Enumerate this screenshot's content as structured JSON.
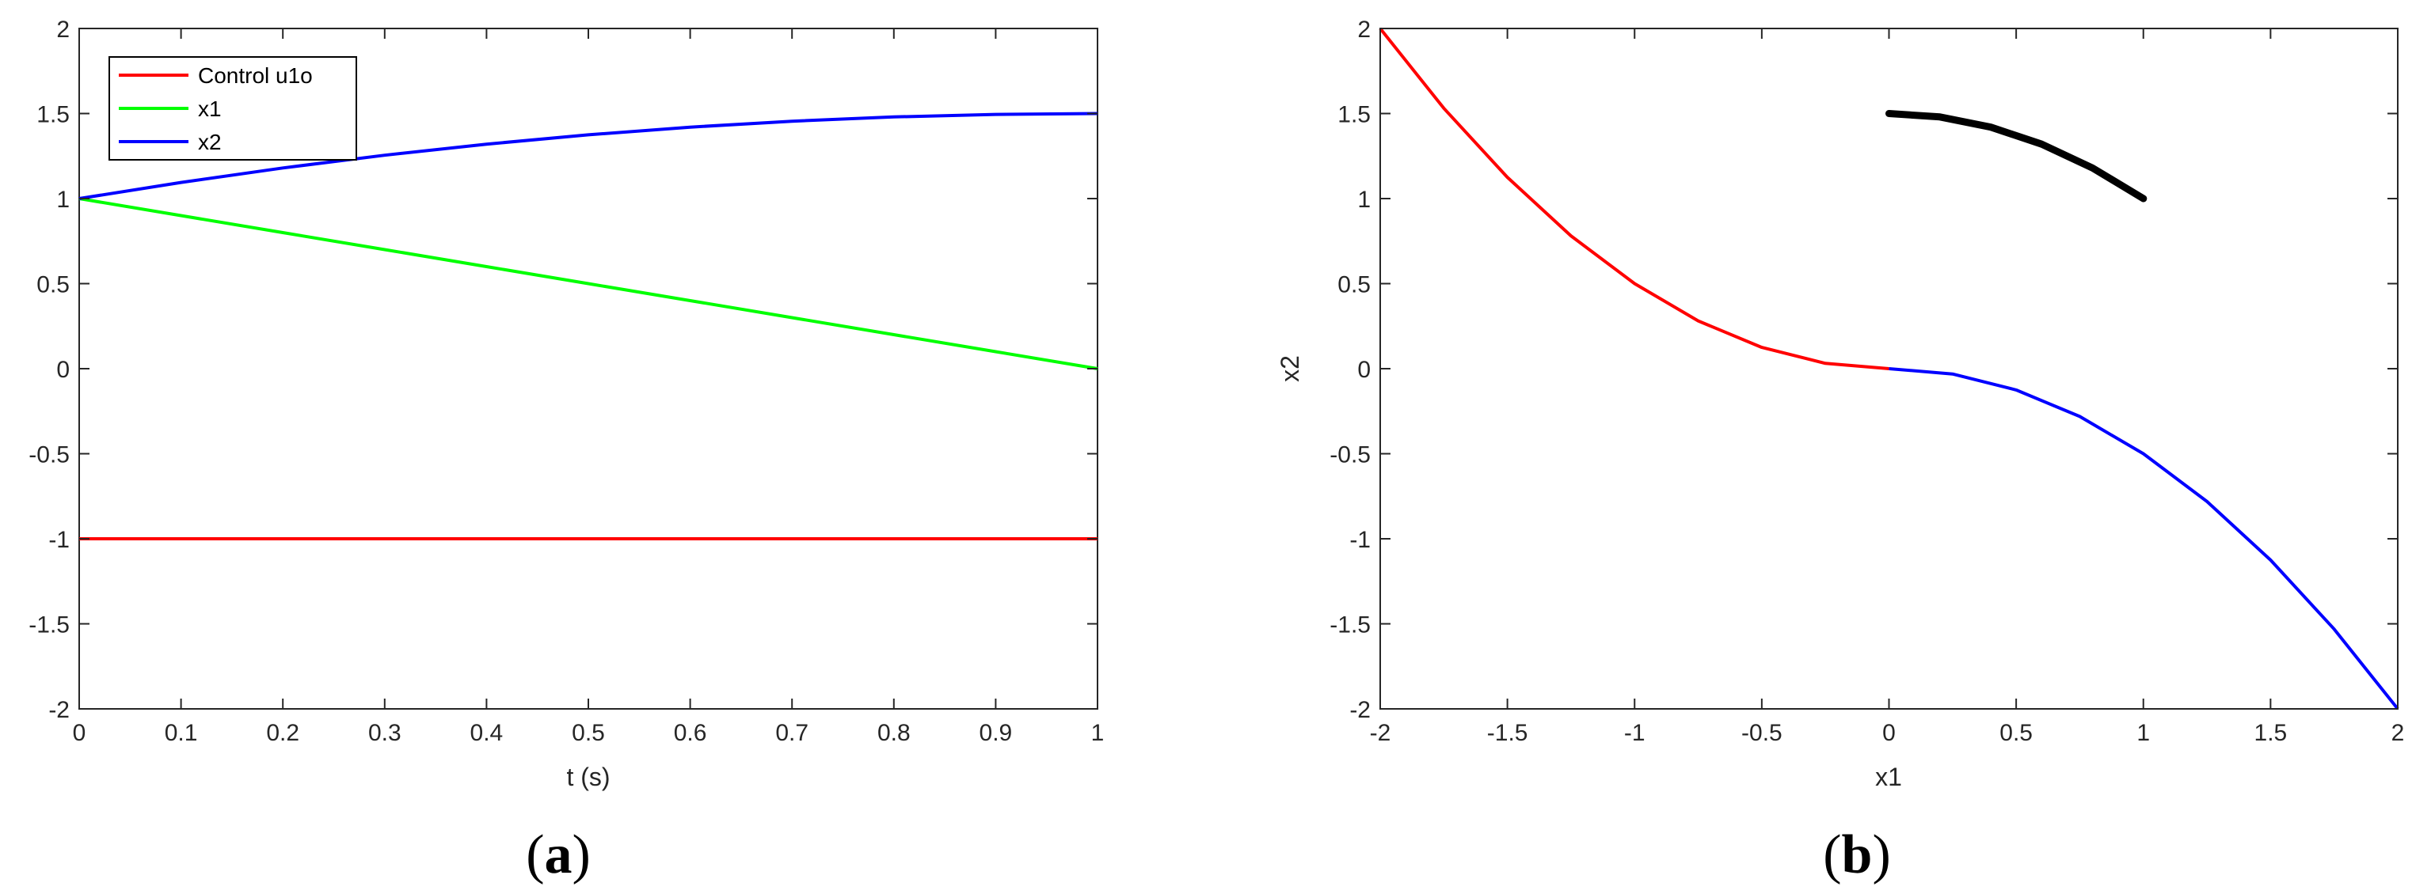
{
  "chart_data": [
    {
      "type": "line",
      "panel_label": "(a)",
      "panel_letter": "a",
      "xlabel": "t (s)",
      "ylabel": "",
      "xlim": [
        0,
        1
      ],
      "ylim": [
        -2,
        2
      ],
      "xticks": [
        0,
        0.1,
        0.2,
        0.3,
        0.4,
        0.5,
        0.6,
        0.7,
        0.8,
        0.9,
        1
      ],
      "xtick_labels": [
        "0",
        "0.1",
        "0.2",
        "0.3",
        "0.4",
        "0.5",
        "0.6",
        "0.7",
        "0.8",
        "0.9",
        "1"
      ],
      "yticks": [
        -2,
        -1.5,
        -1,
        -0.5,
        0,
        0.5,
        1,
        1.5,
        2
      ],
      "ytick_labels": [
        "-2",
        "-1.5",
        "-1",
        "-0.5",
        "0",
        "0.5",
        "1",
        "1.5",
        "2"
      ],
      "grid": false,
      "legend_position": "top-left",
      "series": [
        {
          "name": "Control u1o",
          "color": "#ff0000",
          "x": [
            0,
            0.1,
            0.2,
            0.3,
            0.4,
            0.5,
            0.6,
            0.7,
            0.8,
            0.9,
            1
          ],
          "y": [
            -1,
            -1,
            -1,
            -1,
            -1,
            -1,
            -1,
            -1,
            -1,
            -1,
            -1
          ]
        },
        {
          "name": "x1",
          "color": "#00ff00",
          "x": [
            0,
            0.1,
            0.2,
            0.3,
            0.4,
            0.5,
            0.6,
            0.7,
            0.8,
            0.9,
            1
          ],
          "y": [
            1,
            0.9,
            0.8,
            0.7,
            0.6,
            0.5,
            0.4,
            0.3,
            0.2,
            0.1,
            0
          ]
        },
        {
          "name": "x2",
          "color": "#0000ff",
          "x": [
            0,
            0.1,
            0.2,
            0.3,
            0.4,
            0.5,
            0.6,
            0.7,
            0.8,
            0.9,
            1
          ],
          "y": [
            1,
            1.095,
            1.18,
            1.255,
            1.32,
            1.375,
            1.42,
            1.455,
            1.48,
            1.495,
            1.5
          ]
        }
      ]
    },
    {
      "type": "line",
      "panel_label": "(b)",
      "panel_letter": "b",
      "xlabel": "x1",
      "ylabel": "x2",
      "xlim": [
        -2,
        2
      ],
      "ylim": [
        -2,
        2
      ],
      "xticks": [
        -2,
        -1.5,
        -1,
        -0.5,
        0,
        0.5,
        1,
        1.5,
        2
      ],
      "xtick_labels": [
        "-2",
        "-1.5",
        "-1",
        "-0.5",
        "0",
        "0.5",
        "1",
        "1.5",
        "2"
      ],
      "yticks": [
        -2,
        -1.5,
        -1,
        -0.5,
        0,
        0.5,
        1,
        1.5,
        2
      ],
      "ytick_labels": [
        "-2",
        "-1.5",
        "-1",
        "-0.5",
        "0",
        "0.5",
        "1",
        "1.5",
        "2"
      ],
      "grid": false,
      "series": [
        {
          "color": "#ff0000",
          "x": [
            -2,
            -1.75,
            -1.5,
            -1.25,
            -1,
            -0.75,
            -0.5,
            -0.25,
            0
          ],
          "y": [
            2,
            1.531,
            1.125,
            0.781,
            0.5,
            0.281,
            0.125,
            0.031,
            0
          ]
        },
        {
          "color": "#0000ff",
          "x": [
            0,
            0.25,
            0.5,
            0.75,
            1,
            1.25,
            1.5,
            1.75,
            2
          ],
          "y": [
            0,
            -0.031,
            -0.125,
            -0.281,
            -0.5,
            -0.781,
            -1.125,
            -1.531,
            -2
          ]
        },
        {
          "color": "#000000",
          "x": [
            0,
            0.2,
            0.4,
            0.6,
            0.8,
            1
          ],
          "y": [
            1.5,
            1.48,
            1.42,
            1.32,
            1.18,
            1
          ]
        }
      ]
    }
  ]
}
